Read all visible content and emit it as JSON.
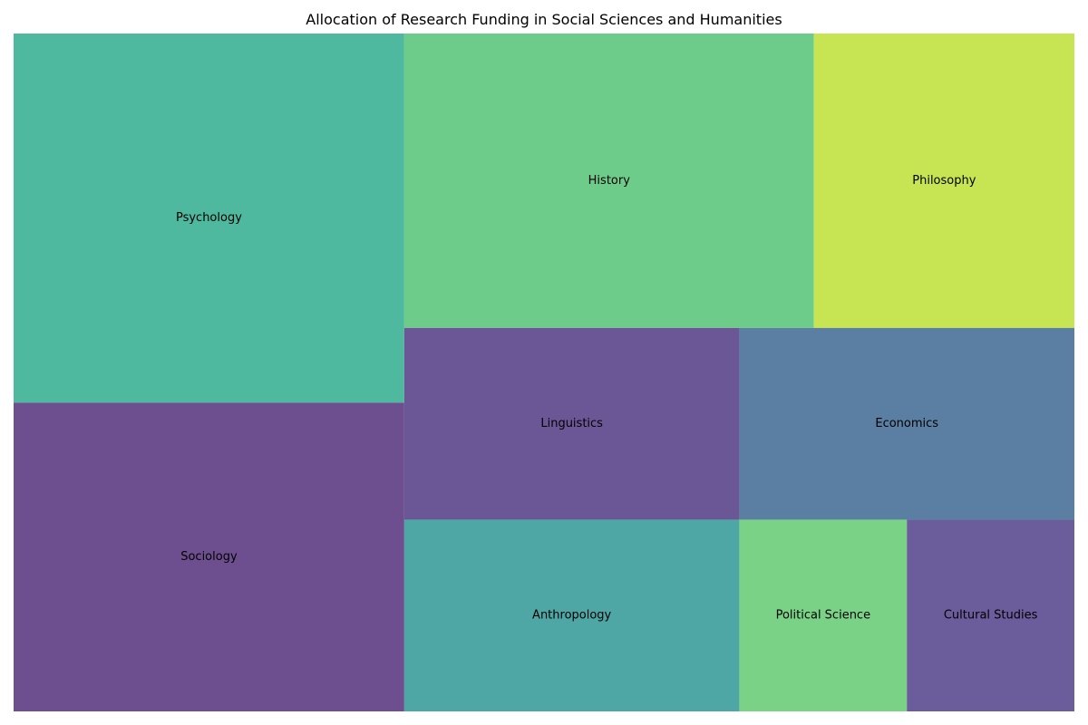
{
  "chart_data": {
    "type": "treemap",
    "title": "Allocation of Research Funding in Social Sciences and Humanities",
    "items": [
      {
        "label": "Psychology",
        "value": 22.0,
        "color": "#4fb99f"
      },
      {
        "label": "Sociology",
        "value": 18.4,
        "color": "#6d4f8f"
      },
      {
        "label": "History",
        "value": 18.4,
        "color": "#6ecc8a"
      },
      {
        "label": "Philosophy",
        "value": 11.7,
        "color": "#c7e452"
      },
      {
        "label": "Linguistics",
        "value": 9.8,
        "color": "#6b5796"
      },
      {
        "label": "Anthropology",
        "value": 9.8,
        "color": "#4ea7a5"
      },
      {
        "label": "Economics",
        "value": 9.8,
        "color": "#5b7ea3"
      },
      {
        "label": "Political Science",
        "value": 4.9,
        "color": "#7ad287"
      },
      {
        "label": "Cultural Studies",
        "value": 4.9,
        "color": "#6b5c9b"
      }
    ]
  }
}
